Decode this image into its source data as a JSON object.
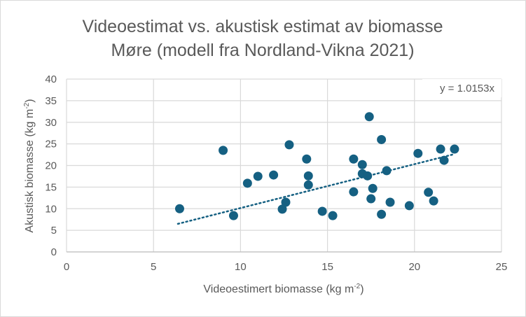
{
  "chart_data": {
    "type": "scatter",
    "title": "Videoestimat vs. akustisk estimat av biomasse",
    "subtitle": "Møre (modell fra Nordland-Vikna 2021)",
    "xlabel": "Videoestimert biomasse (kg m-2)",
    "ylabel": "Akustisk biomasse (kg m-2)",
    "xlabel_parts": [
      "Videoestimert biomasse (kg m",
      "-2",
      ")"
    ],
    "ylabel_parts": [
      "Akustisk biomasse (kg m",
      "-2",
      ")"
    ],
    "xlim": [
      0,
      25
    ],
    "ylim": [
      0,
      40
    ],
    "xticks": [
      "0",
      "5",
      "10",
      "15",
      "20",
      "25"
    ],
    "yticks": [
      "0",
      "5",
      "10",
      "15",
      "20",
      "25",
      "30",
      "35",
      "40"
    ],
    "grid": true,
    "marker_color": "#156082",
    "trendline": {
      "type": "linear-through-origin",
      "slope": 1.0153,
      "x_range": [
        6.4,
        22.2
      ],
      "label": "y = 1.0153x",
      "style": "dotted"
    },
    "points": [
      [
        6.5,
        10.0
      ],
      [
        9.0,
        23.5
      ],
      [
        9.6,
        8.4
      ],
      [
        10.4,
        15.9
      ],
      [
        11.0,
        17.5
      ],
      [
        11.9,
        17.8
      ],
      [
        12.4,
        9.9
      ],
      [
        12.6,
        11.5
      ],
      [
        12.8,
        24.8
      ],
      [
        13.8,
        21.5
      ],
      [
        13.9,
        17.6
      ],
      [
        13.9,
        15.5
      ],
      [
        14.7,
        9.4
      ],
      [
        15.3,
        8.4
      ],
      [
        16.5,
        21.5
      ],
      [
        16.5,
        13.9
      ],
      [
        17.0,
        20.2
      ],
      [
        17.0,
        18.1
      ],
      [
        17.3,
        17.6
      ],
      [
        17.4,
        31.3
      ],
      [
        17.5,
        12.3
      ],
      [
        17.6,
        14.7
      ],
      [
        18.1,
        26.0
      ],
      [
        18.1,
        8.7
      ],
      [
        18.4,
        18.8
      ],
      [
        18.6,
        11.5
      ],
      [
        19.7,
        10.7
      ],
      [
        20.2,
        22.8
      ],
      [
        20.8,
        13.8
      ],
      [
        21.1,
        11.8
      ],
      [
        21.5,
        23.8
      ],
      [
        21.7,
        21.2
      ],
      [
        22.3,
        23.8
      ]
    ]
  }
}
